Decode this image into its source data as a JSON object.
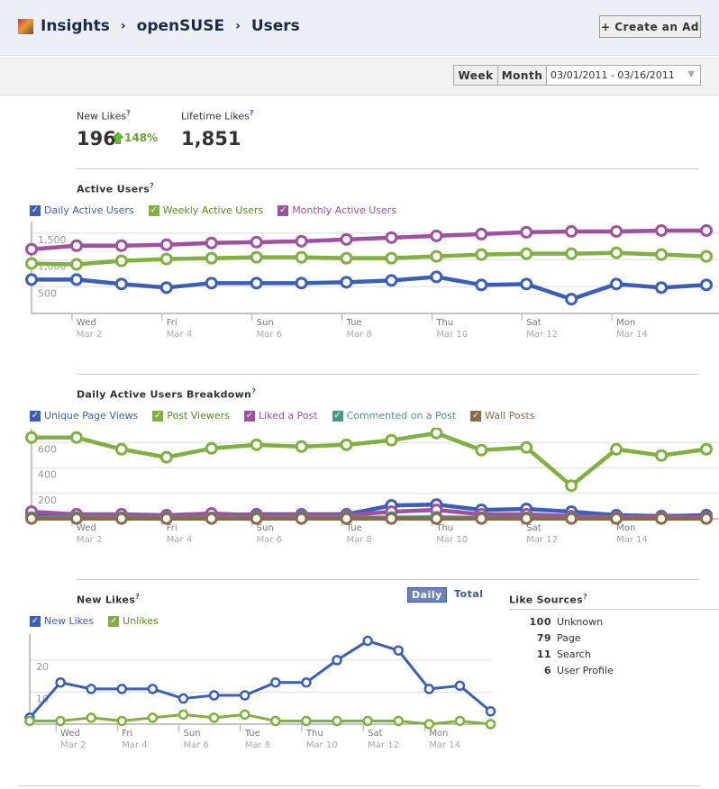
{
  "header": {
    "breadcrumb": [
      "Insights",
      "openSUSE",
      "Users"
    ],
    "separator": "›",
    "create_ad": "+ Create an Ad"
  },
  "toolbar": {
    "week": "Week",
    "month": "Month",
    "date_range": "03/01/2011 - 03/16/2011",
    "dropdown_icon": "triangle-down"
  },
  "stats": {
    "new_likes_label": "New Likes",
    "new_likes": "196",
    "new_likes_change": "148%",
    "lifetime_label": "Lifetime Likes",
    "lifetime": "1,851",
    "help": "?"
  },
  "colors": {
    "blue": "#3b5eb6",
    "green": "#80b040",
    "purple": "#a050a0",
    "teal": "#4a9a8a",
    "brown": "#8a6a4a"
  },
  "x_ticks": [
    {
      "day": "Wed",
      "date": "Mar 2"
    },
    {
      "day": "Fri",
      "date": "Mar 4"
    },
    {
      "day": "Sun",
      "date": "Mar 6"
    },
    {
      "day": "Tue",
      "date": "Mar 8"
    },
    {
      "day": "Thu",
      "date": "Mar 10"
    },
    {
      "day": "Sat",
      "date": "Mar 12"
    },
    {
      "day": "Mon",
      "date": "Mar 14"
    }
  ],
  "chart_data": [
    {
      "type": "line",
      "title": "Active Users",
      "x": [
        "Mar 1",
        "Mar 2",
        "Mar 3",
        "Mar 4",
        "Mar 5",
        "Mar 6",
        "Mar 7",
        "Mar 8",
        "Mar 9",
        "Mar 10",
        "Mar 11",
        "Mar 12",
        "Mar 13",
        "Mar 14",
        "Mar 15",
        "Mar 16"
      ],
      "yticks": [
        {
          "v": 500,
          "label": "500"
        },
        {
          "v": 1000,
          "label": "1,000"
        },
        {
          "v": 1500,
          "label": "1,500"
        }
      ],
      "ylim": [
        0,
        1650
      ],
      "grid": true,
      "series": [
        {
          "name": "Daily Active Users",
          "color": "#3b5eb6",
          "values": [
            633,
            633,
            550,
            483,
            567,
            567,
            567,
            583,
            617,
            683,
            533,
            550,
            267,
            550,
            483,
            533
          ]
        },
        {
          "name": "Weekly Active Users",
          "color": "#80b040",
          "values": [
            933,
            917,
            983,
            1017,
            1033,
            1050,
            1050,
            1033,
            1033,
            1067,
            1100,
            1117,
            1117,
            1133,
            1100,
            1067
          ]
        },
        {
          "name": "Monthly Active Users",
          "color": "#a050a0",
          "values": [
            1200,
            1267,
            1267,
            1283,
            1317,
            1333,
            1350,
            1383,
            1417,
            1450,
            1483,
            1517,
            1533,
            1533,
            1550,
            1550
          ]
        }
      ]
    },
    {
      "type": "line",
      "title": "Daily Active Users Breakdown",
      "x": [
        "Mar 1",
        "Mar 2",
        "Mar 3",
        "Mar 4",
        "Mar 5",
        "Mar 6",
        "Mar 7",
        "Mar 8",
        "Mar 9",
        "Mar 10",
        "Mar 11",
        "Mar 12",
        "Mar 13",
        "Mar 14",
        "Mar 15",
        "Mar 16"
      ],
      "yticks": [
        {
          "v": 200,
          "label": "200"
        },
        {
          "v": 400,
          "label": "400"
        },
        {
          "v": 600,
          "label": "600"
        }
      ],
      "ylim": [
        0,
        680
      ],
      "grid": true,
      "series": [
        {
          "name": "Unique Page Views",
          "color": "#3b5eb6",
          "values": [
            42,
            35,
            28,
            21,
            28,
            35,
            35,
            35,
            105,
            112,
            70,
            77,
            56,
            28,
            21,
            28
          ]
        },
        {
          "name": "Post Viewers",
          "color": "#80b040",
          "values": [
            639,
            639,
            547,
            484,
            554,
            582,
            568,
            582,
            618,
            674,
            540,
            561,
            260,
            547,
            498,
            547
          ]
        },
        {
          "name": "Liked a Post",
          "color": "#a050a0",
          "values": [
            56,
            35,
            35,
            28,
            42,
            28,
            28,
            28,
            56,
            70,
            35,
            35,
            21,
            14,
            14,
            14
          ]
        },
        {
          "name": "Commented on a Post",
          "color": "#4a9a8a",
          "values": [
            10,
            10,
            8,
            8,
            8,
            8,
            8,
            8,
            10,
            12,
            8,
            8,
            6,
            6,
            6,
            6
          ]
        },
        {
          "name": "Wall Posts",
          "color": "#8a6a4a",
          "values": [
            2,
            2,
            2,
            2,
            2,
            2,
            2,
            2,
            2,
            2,
            2,
            2,
            2,
            2,
            2,
            2
          ]
        }
      ]
    },
    {
      "type": "line",
      "title": "New Likes",
      "x": [
        "Mar 1",
        "Mar 2",
        "Mar 3",
        "Mar 4",
        "Mar 5",
        "Mar 6",
        "Mar 7",
        "Mar 8",
        "Mar 9",
        "Mar 10",
        "Mar 11",
        "Mar 12",
        "Mar 13",
        "Mar 14",
        "Mar 15",
        "Mar 16"
      ],
      "yticks": [
        {
          "v": 10,
          "label": "10"
        },
        {
          "v": 20,
          "label": "20"
        }
      ],
      "ylim": [
        0,
        27
      ],
      "grid": true,
      "series": [
        {
          "name": "New Likes",
          "color": "#3b5eb6",
          "values": [
            2,
            13,
            11,
            11,
            11,
            8,
            9,
            9,
            13,
            13,
            20,
            26,
            23,
            11,
            12,
            4
          ]
        },
        {
          "name": "Unlikes",
          "color": "#80b040",
          "values": [
            1,
            1,
            2,
            1,
            2,
            3,
            2,
            3,
            1,
            1,
            1,
            1,
            1,
            0,
            1,
            0
          ]
        }
      ]
    }
  ],
  "new_likes_toggle": {
    "daily": "Daily",
    "total": "Total"
  },
  "like_sources": {
    "title": "Like Sources",
    "items": [
      {
        "count": "100",
        "label": "Unknown"
      },
      {
        "count": "79",
        "label": "Page"
      },
      {
        "count": "11",
        "label": "Search"
      },
      {
        "count": "6",
        "label": "User Profile"
      }
    ]
  }
}
